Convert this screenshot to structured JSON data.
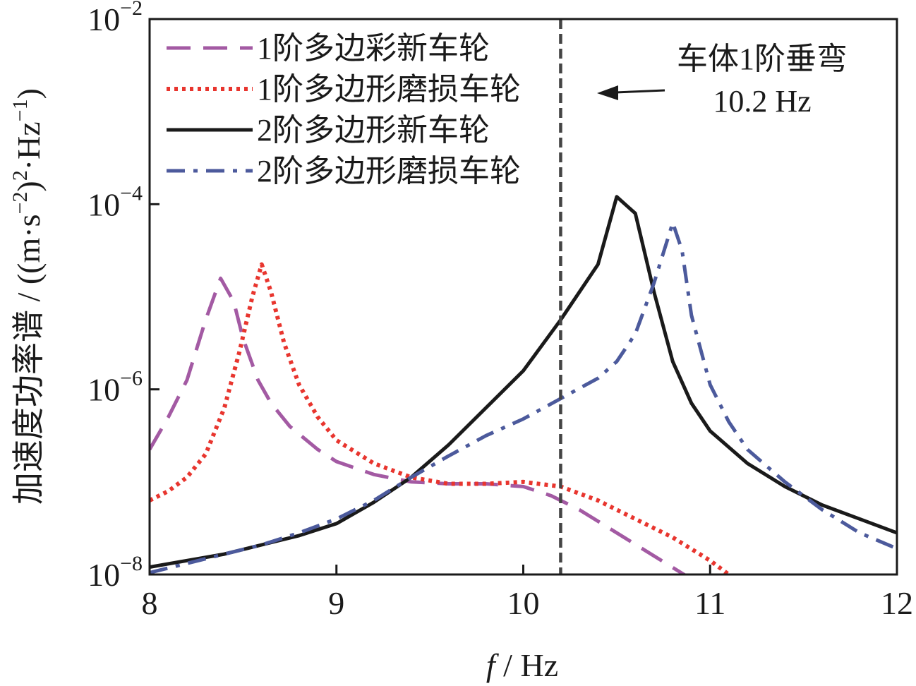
{
  "chart_data": {
    "type": "line",
    "title": "",
    "xlabel_var": "f",
    "xlabel_unit": " / Hz",
    "ylabel_cn": "加速度功率谱 / ",
    "ylabel_unit_parts": [
      "((m·s",
      "−2",
      ")",
      "2",
      "·Hz",
      "−1",
      ")"
    ],
    "xlim": [
      8,
      12
    ],
    "ylim_exp": [
      -8,
      -2
    ],
    "yscale": "log",
    "x_ticks": [
      8,
      9,
      10,
      11,
      12
    ],
    "x_tick_labels": [
      "8",
      "9",
      "10",
      "11",
      "12"
    ],
    "y_ticks": [
      {
        "exp": -8,
        "base": "10",
        "sup": "−8"
      },
      {
        "exp": -6,
        "base": "10",
        "sup": "−6"
      },
      {
        "exp": -4,
        "base": "10",
        "sup": "−4"
      },
      {
        "exp": -2,
        "base": "10",
        "sup": "−2"
      }
    ],
    "vline": {
      "x": 10.2
    },
    "annotation": {
      "line1": "车体1阶垂弯",
      "line2": "10.2 Hz"
    },
    "legend_position": "top-left",
    "series": [
      {
        "name": "1阶多边彩新车轮",
        "color": "#A35AA3",
        "style": "dashed",
        "points": [
          [
            8.0,
            -6.65
          ],
          [
            8.1,
            -6.3
          ],
          [
            8.2,
            -5.9
          ],
          [
            8.3,
            -5.25
          ],
          [
            8.38,
            -4.8
          ],
          [
            8.45,
            -5.05
          ],
          [
            8.5,
            -5.45
          ],
          [
            8.58,
            -5.9
          ],
          [
            8.65,
            -6.15
          ],
          [
            8.75,
            -6.4
          ],
          [
            8.9,
            -6.65
          ],
          [
            9.0,
            -6.78
          ],
          [
            9.2,
            -6.92
          ],
          [
            9.4,
            -7.0
          ],
          [
            9.6,
            -7.02
          ],
          [
            9.8,
            -7.02
          ],
          [
            10.0,
            -7.05
          ],
          [
            10.15,
            -7.15
          ],
          [
            10.3,
            -7.3
          ],
          [
            10.5,
            -7.55
          ],
          [
            10.7,
            -7.8
          ],
          [
            10.9,
            -8.05
          ]
        ]
      },
      {
        "name": "1阶多边形磨损车轮",
        "color": "#E8352E",
        "style": "dotted",
        "points": [
          [
            8.0,
            -7.2
          ],
          [
            8.1,
            -7.1
          ],
          [
            8.2,
            -6.95
          ],
          [
            8.3,
            -6.7
          ],
          [
            8.4,
            -6.2
          ],
          [
            8.48,
            -5.6
          ],
          [
            8.55,
            -5.0
          ],
          [
            8.6,
            -4.65
          ],
          [
            8.65,
            -4.95
          ],
          [
            8.72,
            -5.5
          ],
          [
            8.8,
            -5.95
          ],
          [
            8.9,
            -6.3
          ],
          [
            9.0,
            -6.55
          ],
          [
            9.2,
            -6.8
          ],
          [
            9.4,
            -6.95
          ],
          [
            9.6,
            -7.02
          ],
          [
            9.8,
            -7.02
          ],
          [
            10.0,
            -7.0
          ],
          [
            10.2,
            -7.05
          ],
          [
            10.4,
            -7.2
          ],
          [
            10.6,
            -7.4
          ],
          [
            10.8,
            -7.6
          ],
          [
            11.0,
            -7.85
          ],
          [
            11.1,
            -8.0
          ]
        ]
      },
      {
        "name": "2阶多边形新车轮",
        "color": "#1A1A1A",
        "style": "solid",
        "points": [
          [
            8.0,
            -7.92
          ],
          [
            8.2,
            -7.85
          ],
          [
            8.4,
            -7.78
          ],
          [
            8.6,
            -7.68
          ],
          [
            8.8,
            -7.58
          ],
          [
            9.0,
            -7.45
          ],
          [
            9.2,
            -7.22
          ],
          [
            9.4,
            -6.95
          ],
          [
            9.6,
            -6.6
          ],
          [
            9.8,
            -6.2
          ],
          [
            10.0,
            -5.8
          ],
          [
            10.2,
            -5.25
          ],
          [
            10.4,
            -4.65
          ],
          [
            10.5,
            -3.92
          ],
          [
            10.6,
            -4.1
          ],
          [
            10.7,
            -4.95
          ],
          [
            10.8,
            -5.7
          ],
          [
            10.9,
            -6.15
          ],
          [
            11.0,
            -6.45
          ],
          [
            11.2,
            -6.8
          ],
          [
            11.4,
            -7.05
          ],
          [
            11.6,
            -7.25
          ],
          [
            11.8,
            -7.4
          ],
          [
            12.0,
            -7.55
          ]
        ]
      },
      {
        "name": "2阶多边形磨损车轮",
        "color": "#4C5A9C",
        "style": "dashdot",
        "points": [
          [
            8.0,
            -7.98
          ],
          [
            8.2,
            -7.88
          ],
          [
            8.4,
            -7.78
          ],
          [
            8.6,
            -7.68
          ],
          [
            8.8,
            -7.55
          ],
          [
            9.0,
            -7.4
          ],
          [
            9.2,
            -7.2
          ],
          [
            9.4,
            -6.95
          ],
          [
            9.6,
            -6.72
          ],
          [
            9.8,
            -6.5
          ],
          [
            10.0,
            -6.32
          ],
          [
            10.2,
            -6.1
          ],
          [
            10.4,
            -5.88
          ],
          [
            10.5,
            -5.7
          ],
          [
            10.6,
            -5.4
          ],
          [
            10.7,
            -4.85
          ],
          [
            10.8,
            -4.2
          ],
          [
            10.85,
            -4.5
          ],
          [
            10.9,
            -5.2
          ],
          [
            11.0,
            -5.95
          ],
          [
            11.1,
            -6.35
          ],
          [
            11.2,
            -6.65
          ],
          [
            11.4,
            -7.0
          ],
          [
            11.6,
            -7.3
          ],
          [
            11.8,
            -7.55
          ],
          [
            12.0,
            -7.72
          ]
        ]
      }
    ]
  }
}
